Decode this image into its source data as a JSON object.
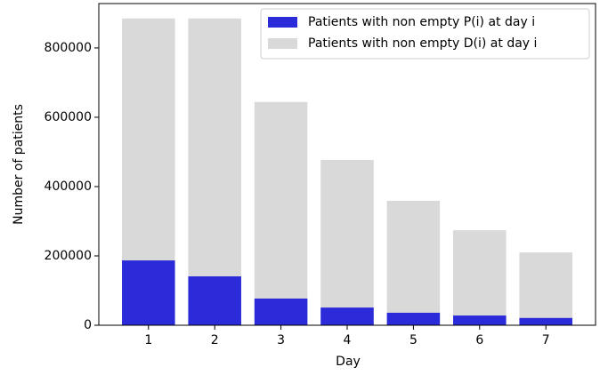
{
  "chart_data": {
    "type": "bar",
    "x": [
      1,
      2,
      3,
      4,
      5,
      6,
      7
    ],
    "xlabel": "Day",
    "ylabel": "Number of patients",
    "series": [
      {
        "name": "Patients with non empty P(i) at day i",
        "color": "#2b2bd9",
        "values": [
          187000,
          141000,
          77000,
          51000,
          36000,
          28000,
          21000
        ]
      },
      {
        "name": "Patients with non empty D(i) at day i",
        "color": "#d9d9d9",
        "values": [
          885000,
          885000,
          644000,
          477000,
          359000,
          274000,
          210000
        ]
      }
    ],
    "xlim": [
      0.25,
      7.75
    ],
    "xticks": [
      1,
      2,
      3,
      4,
      5,
      6,
      7
    ],
    "ylim": [
      0,
      928000
    ],
    "yticks": [
      0,
      200000,
      400000,
      600000,
      800000
    ],
    "legend": "upper right"
  }
}
